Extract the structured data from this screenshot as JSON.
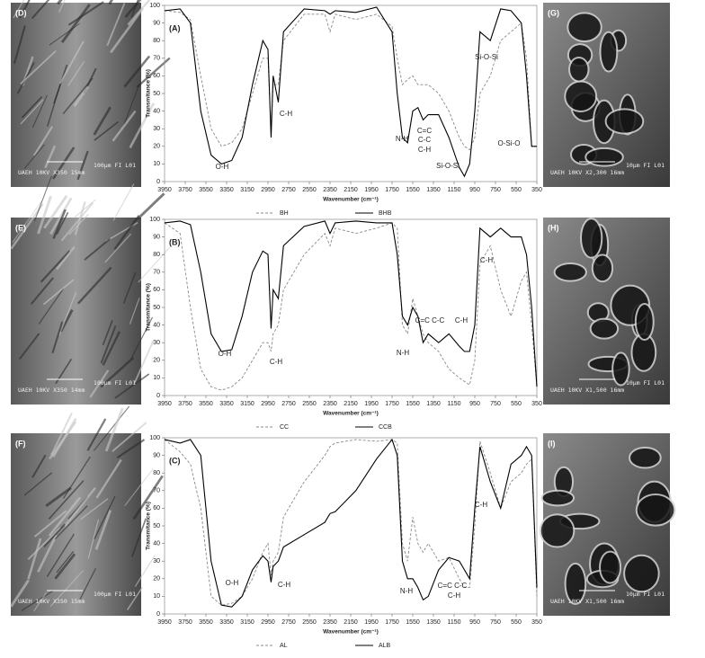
{
  "chart_data": [
    {
      "type": "line",
      "panel": "(A)",
      "xlabel": "Wavenumber (cm⁻¹)",
      "ylabel": "Transmitance (%)",
      "x": [
        3950,
        3800,
        3700,
        3600,
        3500,
        3400,
        3300,
        3200,
        3100,
        3000,
        2950,
        2920,
        2900,
        2850,
        2800,
        2600,
        2400,
        2350,
        2300,
        2100,
        1900,
        1750,
        1700,
        1650,
        1600,
        1550,
        1500,
        1450,
        1400,
        1300,
        1200,
        1100,
        1050,
        1000,
        950,
        900,
        800,
        700,
        600,
        500,
        450,
        400,
        350
      ],
      "xlim": [
        3950,
        350
      ],
      "xticks": [
        3950,
        3750,
        3550,
        3350,
        3150,
        2950,
        2750,
        2550,
        2350,
        2150,
        1950,
        1750,
        1550,
        1350,
        1150,
        950,
        750,
        550,
        350
      ],
      "ylim": [
        0,
        100
      ],
      "yticks": [
        0,
        10,
        20,
        30,
        40,
        50,
        60,
        70,
        80,
        90,
        100
      ],
      "series": [
        {
          "name": "BH",
          "color": "#888888",
          "dashed": true,
          "values": [
            97,
            96,
            92,
            60,
            30,
            20,
            22,
            30,
            50,
            70,
            70,
            30,
            55,
            55,
            80,
            95,
            95,
            85,
            95,
            92,
            95,
            88,
            70,
            55,
            58,
            60,
            55,
            55,
            55,
            50,
            40,
            25,
            20,
            18,
            25,
            50,
            60,
            80,
            85,
            90,
            70,
            20,
            20
          ]
        },
        {
          "name": "BHB",
          "color": "#000000",
          "dashed": false,
          "values": [
            97,
            98,
            90,
            40,
            15,
            10,
            12,
            25,
            55,
            80,
            75,
            25,
            60,
            45,
            85,
            98,
            97,
            95,
            97,
            96,
            99,
            85,
            50,
            25,
            22,
            40,
            42,
            35,
            38,
            38,
            25,
            8,
            3,
            10,
            40,
            85,
            80,
            98,
            97,
            90,
            60,
            20,
            20
          ]
        }
      ],
      "annotations": [
        "O-H",
        "C-H",
        "N-H",
        "C=C",
        "C-C",
        "C-H",
        "Si-O-Si",
        "Si-O-Si",
        "O-Si-O"
      ]
    },
    {
      "type": "line",
      "panel": "(B)",
      "xlabel": "Wavenumber (cm⁻¹)",
      "ylabel": "Transmitance (%)",
      "x": [
        3950,
        3800,
        3700,
        3600,
        3500,
        3400,
        3300,
        3200,
        3100,
        3000,
        2950,
        2920,
        2900,
        2850,
        2800,
        2600,
        2400,
        2350,
        2300,
        2100,
        1900,
        1750,
        1700,
        1650,
        1600,
        1550,
        1500,
        1450,
        1400,
        1300,
        1200,
        1100,
        1050,
        1000,
        950,
        900,
        800,
        700,
        600,
        500,
        450,
        400,
        350
      ],
      "xlim": [
        3950,
        350
      ],
      "xticks": [
        3950,
        3750,
        3550,
        3350,
        3150,
        2950,
        2750,
        2550,
        2350,
        2150,
        1950,
        1750,
        1550,
        1350,
        1150,
        950,
        750,
        550,
        350
      ],
      "ylim": [
        0,
        100
      ],
      "yticks": [
        0,
        10,
        20,
        30,
        40,
        50,
        60,
        70,
        80,
        90,
        100
      ],
      "series": [
        {
          "name": "CC",
          "color": "#888888",
          "dashed": true,
          "values": [
            98,
            92,
            50,
            15,
            5,
            3,
            5,
            10,
            20,
            30,
            30,
            25,
            35,
            40,
            60,
            80,
            92,
            85,
            95,
            92,
            95,
            98,
            95,
            40,
            35,
            55,
            45,
            35,
            30,
            25,
            15,
            10,
            8,
            6,
            20,
            75,
            85,
            60,
            45,
            65,
            70,
            40,
            5
          ]
        },
        {
          "name": "CCB",
          "color": "#000000",
          "dashed": false,
          "values": [
            98,
            99,
            97,
            70,
            35,
            25,
            26,
            45,
            70,
            82,
            80,
            38,
            60,
            55,
            85,
            96,
            99,
            92,
            98,
            99,
            98,
            98,
            80,
            45,
            40,
            50,
            45,
            30,
            35,
            30,
            35,
            28,
            25,
            25,
            40,
            95,
            90,
            95,
            90,
            90,
            80,
            50,
            5
          ]
        }
      ],
      "annotations": [
        "O-H",
        "C-H",
        "N-H",
        "C=C C-C",
        "C-H",
        "C-H"
      ]
    },
    {
      "type": "line",
      "panel": "(C)",
      "xlabel": "Wavenumber (cm⁻¹)",
      "ylabel": "Transmitance (%)",
      "x": [
        3950,
        3800,
        3700,
        3600,
        3500,
        3400,
        3300,
        3200,
        3100,
        3000,
        2950,
        2920,
        2900,
        2850,
        2800,
        2600,
        2400,
        2350,
        2300,
        2100,
        1900,
        1750,
        1700,
        1650,
        1600,
        1550,
        1500,
        1450,
        1400,
        1300,
        1200,
        1100,
        1050,
        1000,
        950,
        900,
        800,
        700,
        600,
        500,
        450,
        400,
        350
      ],
      "xlim": [
        3950,
        350
      ],
      "xticks": [
        3950,
        3750,
        3550,
        3350,
        3150,
        2950,
        2750,
        2550,
        2350,
        2150,
        1950,
        1750,
        1550,
        1350,
        1150,
        950,
        750,
        550,
        350
      ],
      "ylim": [
        0,
        100
      ],
      "yticks": [
        0,
        10,
        20,
        30,
        40,
        50,
        60,
        70,
        80,
        90,
        100
      ],
      "series": [
        {
          "name": "AL",
          "color": "#888888",
          "dashed": true,
          "values": [
            99,
            92,
            85,
            60,
            10,
            5,
            6,
            10,
            20,
            35,
            40,
            22,
            30,
            35,
            55,
            75,
            90,
            95,
            97,
            99,
            98,
            99,
            97,
            40,
            30,
            55,
            40,
            35,
            40,
            30,
            32,
            20,
            15,
            15,
            50,
            98,
            80,
            60,
            75,
            80,
            85,
            88,
            10
          ]
        },
        {
          "name": "ALB",
          "color": "#000000",
          "dashed": false,
          "values": [
            99,
            97,
            99,
            90,
            30,
            5,
            4,
            10,
            25,
            33,
            30,
            18,
            27,
            30,
            38,
            45,
            52,
            57,
            58,
            70,
            88,
            99,
            90,
            30,
            20,
            20,
            15,
            8,
            10,
            25,
            32,
            30,
            25,
            20,
            60,
            95,
            75,
            60,
            85,
            90,
            95,
            90,
            15
          ]
        }
      ],
      "annotations": [
        "O-H",
        "C-H",
        "N-H",
        "C=C C-C",
        "C-H",
        "C-H"
      ]
    }
  ],
  "images": [
    {
      "label": "(D)",
      "scale": "100µm FI L01",
      "caption": "UAEH  10KV   X350 15mm"
    },
    {
      "label": "(E)",
      "scale": "100µm FI L01",
      "caption": "UAEH  10KV   X350 14mm"
    },
    {
      "label": "(F)",
      "scale": "100µm FI L01",
      "caption": "UAEH  10KV   X350 15mm"
    },
    {
      "label": "(G)",
      "scale": "10µm FI L01",
      "caption": "UAEH  10KV  X2,300 16mm"
    },
    {
      "label": "(H)",
      "scale": "10µm FI L01",
      "caption": "UAEH  10KV  X1,500 16mm"
    },
    {
      "label": "(I)",
      "scale": "10µm FI L01",
      "caption": "UAEH  10KV  X1,500 16mm"
    }
  ]
}
